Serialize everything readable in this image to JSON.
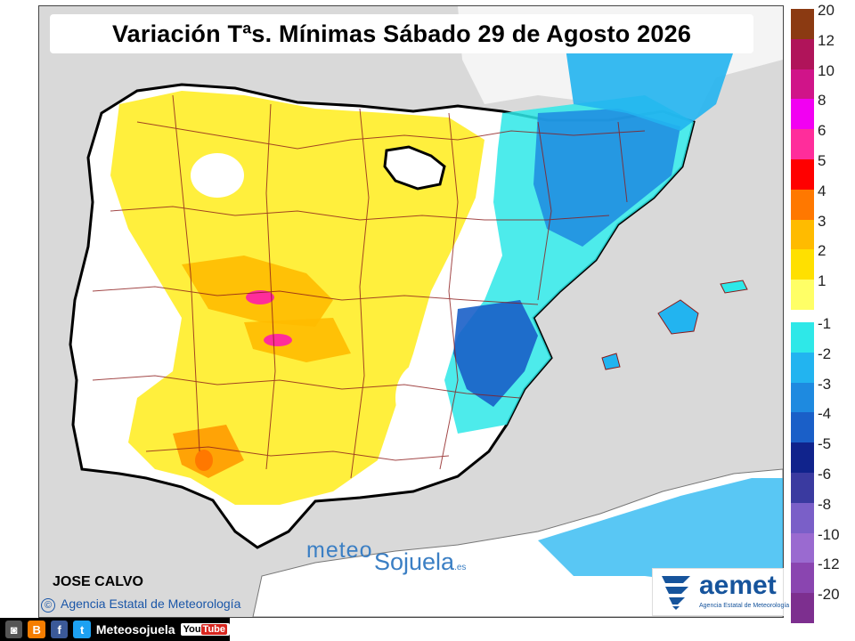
{
  "title": "Variación Tªs. Mínimas Sábado 29 de Agosto 2026",
  "legend": [
    {
      "label": "20",
      "color": "#8b3a12"
    },
    {
      "label": "12",
      "color": "#b0145a"
    },
    {
      "label": "10",
      "color": "#d01489"
    },
    {
      "label": "8",
      "color": "#f200f2"
    },
    {
      "label": "6",
      "color": "#ff2d9b"
    },
    {
      "label": "5",
      "color": "#ff0000"
    },
    {
      "label": "4",
      "color": "#ff7800"
    },
    {
      "label": "3",
      "color": "#ffbb00"
    },
    {
      "label": "2",
      "color": "#ffe000"
    },
    {
      "label": "1",
      "color": "#ffff66"
    },
    {
      "label": "-1",
      "color": "#2ee8e8"
    },
    {
      "label": "-2",
      "color": "#22b4f0"
    },
    {
      "label": "-3",
      "color": "#1e8ae0"
    },
    {
      "label": "-4",
      "color": "#1a5fc8"
    },
    {
      "label": "-5",
      "color": "#10238c"
    },
    {
      "label": "-6",
      "color": "#3a3aa0"
    },
    {
      "label": "-8",
      "color": "#7a5fc8"
    },
    {
      "label": "-10",
      "color": "#9a6ad0"
    },
    {
      "label": "-12",
      "color": "#8a45b0"
    },
    {
      "label": "-20",
      "color": "#7d2f8f"
    }
  ],
  "author": "JOSE CALVO",
  "copyright": "Agencia Estatal de Meteorología",
  "watermark": {
    "part1": "meteo",
    "part2": "Sojuela",
    "domain": ".es"
  },
  "aemet_logo": {
    "brand": "aemet",
    "subtitle": "Agencia Estatal de Meteorología"
  },
  "social": {
    "handle": "Meteosojuela",
    "youtube_prefix": "You",
    "youtube_suffix": "Tube",
    "icons": [
      "camera-icon",
      "blogger-icon",
      "facebook-icon",
      "twitter-icon"
    ]
  },
  "colors": {
    "sea": "#d9d9d9",
    "land_neutral": "#ffffff",
    "border": "#000000",
    "province_lines": "#8b1a1a"
  }
}
